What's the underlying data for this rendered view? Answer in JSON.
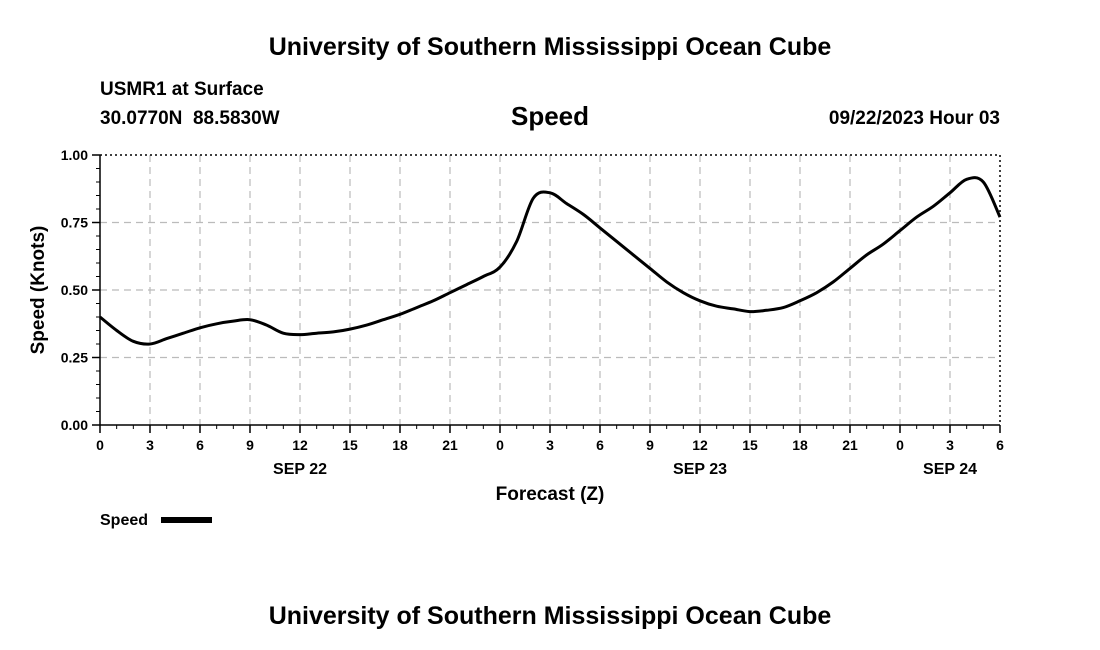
{
  "header": {
    "title": "University of Southern Mississippi Ocean Cube",
    "station": "USMR1 at Surface",
    "coords": "30.0770N  88.5830W",
    "variable": "Speed",
    "datetime": "09/22/2023 Hour 03"
  },
  "footer": {
    "title": "University of Southern Mississippi Ocean Cube"
  },
  "chart_data": {
    "type": "line",
    "ylabel": "Speed (Knots)",
    "xlabel": "Forecast (Z)",
    "ylim": [
      0,
      1
    ],
    "yticks": [
      "0.00",
      "0.25",
      "0.50",
      "0.75",
      "1.00"
    ],
    "xlim": [
      0,
      54
    ],
    "xticks": [
      "0",
      "3",
      "6",
      "9",
      "12",
      "15",
      "18",
      "21",
      "0",
      "3",
      "6",
      "9",
      "12",
      "15",
      "18",
      "21",
      "0",
      "3",
      "6"
    ],
    "day_labels": [
      {
        "label": "SEP 22",
        "x": 12
      },
      {
        "label": "SEP 23",
        "x": 36
      },
      {
        "label": "SEP 24",
        "x": 51
      }
    ],
    "grid": true,
    "legend": {
      "position": "bottom-left",
      "label": "Speed"
    },
    "series": [
      {
        "name": "Speed",
        "color": "#000000",
        "x": [
          0,
          1,
          2,
          3,
          4,
          5,
          6,
          7,
          8,
          9,
          10,
          11,
          12,
          13,
          14,
          15,
          16,
          17,
          18,
          19,
          20,
          21,
          22,
          23,
          24,
          25,
          26,
          27,
          28,
          29,
          30,
          31,
          32,
          33,
          34,
          35,
          36,
          37,
          38,
          39,
          40,
          41,
          42,
          43,
          44,
          45,
          46,
          47,
          48,
          49,
          50,
          51,
          52,
          53,
          54
        ],
        "y": [
          0.4,
          0.35,
          0.31,
          0.3,
          0.32,
          0.34,
          0.36,
          0.375,
          0.385,
          0.39,
          0.37,
          0.34,
          0.335,
          0.34,
          0.345,
          0.355,
          0.37,
          0.39,
          0.41,
          0.435,
          0.46,
          0.49,
          0.52,
          0.55,
          0.585,
          0.68,
          0.84,
          0.86,
          0.82,
          0.78,
          0.73,
          0.68,
          0.63,
          0.58,
          0.53,
          0.49,
          0.46,
          0.44,
          0.43,
          0.42,
          0.425,
          0.435,
          0.46,
          0.49,
          0.53,
          0.58,
          0.63,
          0.67,
          0.72,
          0.77,
          0.81,
          0.86,
          0.91,
          0.9,
          0.77
        ]
      }
    ]
  }
}
